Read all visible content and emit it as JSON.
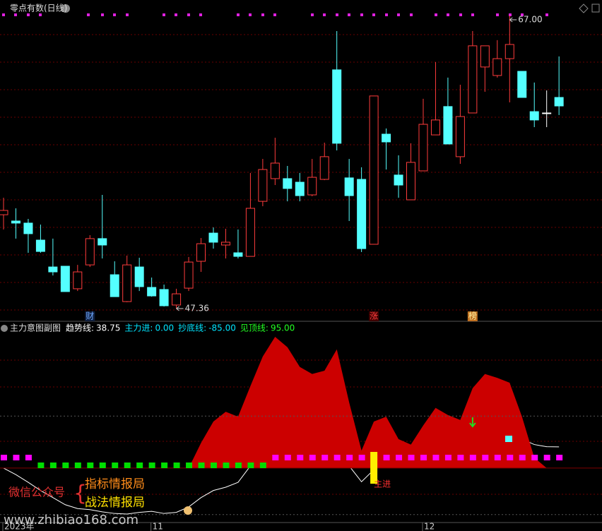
{
  "chart_data": [
    {
      "type": "candlestick",
      "title": "零点有数(日线)",
      "categories": [
        "2023年",
        null,
        null,
        null,
        null,
        null,
        null,
        null,
        null,
        null,
        null,
        null,
        "11",
        null,
        null,
        null,
        null,
        null,
        null,
        null,
        null,
        null,
        null,
        null,
        null,
        null,
        null,
        null,
        null,
        null,
        null,
        null,
        null,
        null,
        "12",
        null,
        null,
        null,
        null,
        null,
        null,
        null,
        null,
        null,
        null,
        null
      ],
      "open": [
        53.65,
        53.23,
        53.09,
        51.95,
        50.15,
        50.2,
        48.69,
        50.29,
        52.05,
        49.63,
        47.83,
        50.15,
        48.78,
        48.64,
        47.6,
        48.73,
        50.53,
        52.42,
        51.62,
        51.1,
        50.86,
        54.55,
        56.07,
        56.07,
        55.83,
        54.98,
        56.02,
        63.36,
        56.12,
        56.02,
        51.67,
        59.05,
        56.31,
        54.65,
        56.59,
        59.0,
        60.9,
        57.54,
        60.47,
        63.55,
        62.98,
        64.11,
        63.26,
        60.56,
        60.47,
        61.51
      ],
      "high": [
        54.79,
        54.08,
        53.37,
        52.99,
        52.05,
        50.2,
        50.29,
        52.28,
        54.98,
        50.53,
        50.91,
        50.77,
        49.44,
        48.97,
        48.69,
        50.82,
        52.09,
        52.8,
        52.71,
        52.66,
        56.45,
        57.39,
        58.81,
        56.92,
        56.45,
        57.39,
        58.48,
        65.96,
        57.39,
        56.83,
        61.61,
        59.43,
        57.63,
        58.44,
        61.42,
        63.88,
        62.84,
        62.36,
        65.96,
        64.97,
        65.35,
        67.0,
        63.26,
        62.51,
        61.98,
        64.26
      ],
      "low": [
        52.66,
        52.05,
        51.1,
        51.1,
        49.58,
        48.5,
        48.54,
        50.15,
        50.72,
        48.16,
        47.79,
        48.54,
        48.16,
        47.5,
        47.36,
        48.54,
        49.82,
        51.38,
        50.72,
        50.72,
        50.86,
        54.22,
        55.64,
        54.55,
        54.55,
        54.89,
        55.97,
        57.96,
        53.23,
        51.15,
        51.67,
        56.68,
        54.79,
        54.65,
        56.59,
        59.0,
        58.39,
        57.06,
        60.47,
        61.89,
        62.84,
        61.18,
        61.51,
        59.52,
        59.52,
        60.33
      ],
      "close": [
        53.94,
        53.09,
        52.38,
        51.19,
        49.82,
        48.5,
        49.82,
        52.05,
        51.62,
        48.16,
        50.29,
        48.83,
        48.21,
        47.55,
        48.35,
        50.48,
        51.71,
        51.81,
        51.81,
        50.86,
        54.08,
        56.68,
        57.11,
        55.41,
        54.93,
        56.16,
        57.54,
        58.44,
        54.93,
        51.38,
        61.61,
        58.53,
        55.64,
        57.16,
        59.71,
        60.0,
        58.39,
        60.23,
        64.97,
        64.97,
        64.11,
        65.06,
        61.51,
        60.0,
        60.47,
        60.94
      ],
      "up_color": "#ff3c3c",
      "down_color": "#54ffff",
      "flat_color": "#ffffff",
      "ylim": [
        46.51,
        68.04
      ],
      "high_label": {
        "value": 67.0,
        "label": "67.00"
      },
      "low_label": {
        "value": 47.36,
        "label": "47.36"
      },
      "markers": [
        null,
        null,
        null,
        null,
        null,
        null,
        null,
        "财",
        null,
        null,
        null,
        null,
        null,
        null,
        null,
        null,
        null,
        null,
        null,
        null,
        null,
        null,
        null,
        null,
        null,
        null,
        null,
        null,
        null,
        null,
        "涨",
        null,
        null,
        null,
        null,
        null,
        null,
        null,
        "榜",
        null,
        null,
        null,
        null,
        null,
        null,
        null
      ]
    },
    {
      "type": "indicator",
      "title": "主力意图副图",
      "legend": [
        {
          "label": "趋势线:",
          "value": {
            "value": 38.75,
            "label": "38.75"
          },
          "color": "#ffffff"
        },
        {
          "label": "主力进:",
          "value": {
            "value": 0,
            "label": "0.00"
          },
          "color": "#00e5ff"
        },
        {
          "label": "抄底线:",
          "value": {
            "value": -85,
            "label": "-85.00"
          },
          "color": "#00e5ff"
        },
        {
          "label": "见顶线:",
          "value": {
            "value": 95,
            "label": "95.00"
          },
          "color": "#22ff22"
        }
      ],
      "area": {
        "color": "#cc0000",
        "values": [
          null,
          null,
          null,
          null,
          null,
          null,
          null,
          null,
          null,
          null,
          null,
          null,
          null,
          null,
          null,
          0,
          46,
          85,
          103,
          94,
          150,
          204,
          240,
          221,
          185,
          172,
          178,
          217,
          120,
          32,
          85,
          94,
          53,
          43,
          78,
          110,
          97,
          88,
          146,
          172,
          165,
          156,
          94,
          19,
          0,
          null
        ]
      },
      "line": {
        "color": "#ffffff",
        "values": [
          0,
          -12,
          -26,
          -41,
          -54,
          -67,
          -74,
          -76,
          -80,
          -83,
          -84,
          -81,
          -79,
          -83,
          -81,
          -71,
          -54,
          -41,
          -35,
          -26,
          4,
          30,
          56,
          68,
          68,
          62,
          56,
          43,
          4,
          -25,
          -3,
          30,
          23,
          19,
          30,
          43,
          43,
          36,
          49,
          62,
          66,
          62,
          53,
          43,
          39,
          38.75
        ]
      },
      "ylim": [
        -106,
        249
      ],
      "signals": [
        null,
        null,
        null,
        null,
        null,
        null,
        null,
        null,
        null,
        null,
        null,
        null,
        null,
        null,
        null,
        null,
        null,
        null,
        null,
        null,
        null,
        null,
        null,
        null,
        null,
        null,
        null,
        null,
        null,
        null,
        "主进",
        null,
        null,
        null,
        null,
        null,
        null,
        null,
        null,
        null,
        null,
        null,
        null,
        null,
        null,
        null
      ]
    }
  ],
  "watermark": {
    "prefix": "微信公众号",
    "lines": [
      "指标情报局",
      "战法情报局"
    ],
    "url": "www.zhibiao168.com"
  }
}
